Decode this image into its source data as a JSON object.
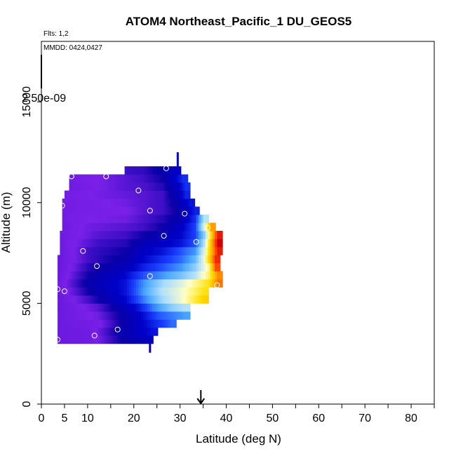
{
  "chart_data": {
    "type": "heatmap",
    "title": "ATOM4 Northeast_Pacific_1 DU_GEOS5",
    "subtitle_flights": "Flts: 1,2",
    "subtitle_dates": "MMDD: 0424,0427",
    "xlabel": "Latitude (deg N)",
    "ylabel": "Altitude (m)",
    "xlim": [
      0,
      85
    ],
    "ylim": [
      0,
      18000
    ],
    "x_ticks": [
      0,
      5,
      10,
      20,
      30,
      40,
      50,
      60,
      70,
      80
    ],
    "x_tick_labels": [
      "0",
      "5",
      "10",
      "20",
      "30",
      "40",
      "50",
      "60",
      "70",
      "80"
    ],
    "x_minor_ticks": [
      15,
      25,
      35,
      45,
      55,
      65,
      75,
      85
    ],
    "y_ticks": [
      0,
      5000,
      10000,
      15000
    ],
    "y_tick_labels": [
      "0",
      "5000",
      "10000",
      "15000"
    ],
    "colorbar_label": "2.50e-09",
    "arrow_marker_latitude": 34.5,
    "grid": false,
    "colormap": [
      "#5b12d6",
      "#7a20e8",
      "#0a00a8",
      "#0000c8",
      "#1a40ff",
      "#4aa8ff",
      "#a8dcff",
      "#ffffc8",
      "#ffe000",
      "#ffa000",
      "#ff4000",
      "#d00000"
    ],
    "bins": [
      {
        "alt_lo": 3000,
        "alt_hi": 3400,
        "cells": [
          [
            3.5,
            0.05
          ],
          [
            10,
            0.06
          ],
          [
            17,
            0.18
          ],
          [
            20,
            0.22
          ],
          [
            23,
            0.25
          ]
        ]
      },
      {
        "alt_lo": 3400,
        "alt_hi": 3800,
        "cells": [
          [
            3.5,
            0.05
          ],
          [
            10,
            0.06
          ],
          [
            17,
            0.2
          ],
          [
            20,
            0.24
          ],
          [
            24,
            0.3
          ]
        ]
      },
      {
        "alt_lo": 3800,
        "alt_hi": 4200,
        "cells": [
          [
            3.5,
            0.05
          ],
          [
            12,
            0.08
          ],
          [
            19,
            0.22
          ],
          [
            24,
            0.32
          ],
          [
            28,
            0.4
          ]
        ]
      },
      {
        "alt_lo": 4200,
        "alt_hi": 4600,
        "cells": [
          [
            3.5,
            0.05
          ],
          [
            12,
            0.1
          ],
          [
            20,
            0.24
          ],
          [
            25,
            0.38
          ],
          [
            31,
            0.45
          ]
        ]
      },
      {
        "alt_lo": 4600,
        "alt_hi": 5000,
        "cells": [
          [
            3.5,
            0.04
          ],
          [
            12,
            0.12
          ],
          [
            20,
            0.28
          ],
          [
            24,
            0.42
          ],
          [
            28,
            0.52
          ],
          [
            31,
            0.56
          ]
        ]
      },
      {
        "alt_lo": 5000,
        "alt_hi": 5400,
        "cells": [
          [
            3.5,
            0.04
          ],
          [
            10,
            0.14
          ],
          [
            18,
            0.28
          ],
          [
            22,
            0.42
          ],
          [
            26,
            0.54
          ],
          [
            30,
            0.62
          ],
          [
            33,
            0.7
          ],
          [
            35,
            0.75
          ]
        ]
      },
      {
        "alt_lo": 5400,
        "alt_hi": 5800,
        "cells": [
          [
            3.5,
            0.05
          ],
          [
            10,
            0.18
          ],
          [
            18,
            0.3
          ],
          [
            22,
            0.45
          ],
          [
            26,
            0.56
          ],
          [
            30,
            0.62
          ],
          [
            33,
            0.68
          ],
          [
            35,
            0.72
          ]
        ]
      },
      {
        "alt_lo": 5800,
        "alt_hi": 6200,
        "cells": [
          [
            3.5,
            0.06
          ],
          [
            10,
            0.2
          ],
          [
            18,
            0.3
          ],
          [
            22,
            0.44
          ],
          [
            26,
            0.54
          ],
          [
            30,
            0.6
          ],
          [
            33,
            0.66
          ],
          [
            36,
            0.72
          ],
          [
            38,
            0.86
          ]
        ]
      },
      {
        "alt_lo": 6200,
        "alt_hi": 6600,
        "cells": [
          [
            3.5,
            0.05
          ],
          [
            10,
            0.18
          ],
          [
            18,
            0.28
          ],
          [
            22,
            0.38
          ],
          [
            26,
            0.44
          ],
          [
            30,
            0.5
          ],
          [
            33,
            0.56
          ],
          [
            36,
            0.68
          ],
          [
            38,
            0.84
          ]
        ]
      },
      {
        "alt_lo": 6600,
        "alt_hi": 7000,
        "cells": [
          [
            3.5,
            0.04
          ],
          [
            10,
            0.16
          ],
          [
            18,
            0.24
          ],
          [
            22,
            0.32
          ],
          [
            26,
            0.38
          ],
          [
            30,
            0.44
          ],
          [
            33,
            0.52
          ],
          [
            36,
            0.66
          ],
          [
            37.5,
            0.9
          ]
        ]
      },
      {
        "alt_lo": 7000,
        "alt_hi": 7400,
        "cells": [
          [
            3.5,
            0.04
          ],
          [
            10,
            0.14
          ],
          [
            18,
            0.2
          ],
          [
            22,
            0.28
          ],
          [
            26,
            0.34
          ],
          [
            30,
            0.4
          ],
          [
            33,
            0.48
          ],
          [
            35,
            0.62
          ],
          [
            36.5,
            0.8
          ],
          [
            37.5,
            0.94
          ]
        ]
      },
      {
        "alt_lo": 7400,
        "alt_hi": 7800,
        "cells": [
          [
            4,
            0.05
          ],
          [
            10,
            0.14
          ],
          [
            18,
            0.18
          ],
          [
            22,
            0.26
          ],
          [
            26,
            0.3
          ],
          [
            30,
            0.38
          ],
          [
            33,
            0.44
          ],
          [
            35,
            0.6
          ],
          [
            36.5,
            0.78
          ],
          [
            38,
            0.96
          ]
        ]
      },
      {
        "alt_lo": 7800,
        "alt_hi": 8200,
        "cells": [
          [
            4,
            0.06
          ],
          [
            12,
            0.14
          ],
          [
            18,
            0.16
          ],
          [
            22,
            0.22
          ],
          [
            26,
            0.26
          ],
          [
            30,
            0.3
          ],
          [
            33,
            0.38
          ],
          [
            35,
            0.56
          ],
          [
            36.5,
            0.78
          ],
          [
            38,
            1.0
          ]
        ]
      },
      {
        "alt_lo": 8200,
        "alt_hi": 8600,
        "cells": [
          [
            4,
            0.06
          ],
          [
            12,
            0.12
          ],
          [
            18,
            0.14
          ],
          [
            22,
            0.18
          ],
          [
            26,
            0.22
          ],
          [
            30,
            0.28
          ],
          [
            33,
            0.36
          ],
          [
            35,
            0.52
          ],
          [
            36.5,
            0.74
          ],
          [
            38,
            0.96
          ]
        ]
      },
      {
        "alt_lo": 8600,
        "alt_hi": 9000,
        "cells": [
          [
            4.5,
            0.06
          ],
          [
            10,
            0.1
          ],
          [
            18,
            0.12
          ],
          [
            22,
            0.14
          ],
          [
            26,
            0.18
          ],
          [
            30,
            0.26
          ],
          [
            33,
            0.36
          ],
          [
            35,
            0.6
          ],
          [
            36.5,
            0.82
          ]
        ]
      },
      {
        "alt_lo": 9000,
        "alt_hi": 9400,
        "cells": [
          [
            4.5,
            0.07
          ],
          [
            10,
            0.09
          ],
          [
            18,
            0.1
          ],
          [
            22,
            0.13
          ],
          [
            26,
            0.16
          ],
          [
            30,
            0.22
          ],
          [
            33,
            0.34
          ],
          [
            35,
            0.56
          ]
        ]
      },
      {
        "alt_lo": 9400,
        "alt_hi": 9800,
        "cells": [
          [
            4.5,
            0.07
          ],
          [
            10,
            0.08
          ],
          [
            18,
            0.09
          ],
          [
            22,
            0.12
          ],
          [
            26,
            0.14
          ],
          [
            30,
            0.2
          ],
          [
            33,
            0.32
          ]
        ]
      },
      {
        "alt_lo": 9800,
        "alt_hi": 10200,
        "cells": [
          [
            4.5,
            0.07
          ],
          [
            10,
            0.08
          ],
          [
            18,
            0.1
          ],
          [
            22,
            0.12
          ],
          [
            26,
            0.14
          ],
          [
            29,
            0.2
          ],
          [
            32,
            0.3
          ]
        ]
      },
      {
        "alt_lo": 10200,
        "alt_hi": 10600,
        "cells": [
          [
            5,
            0.07
          ],
          [
            10,
            0.09
          ],
          [
            18,
            0.11
          ],
          [
            22,
            0.12
          ],
          [
            26,
            0.14
          ],
          [
            29,
            0.22
          ],
          [
            31,
            0.32
          ]
        ]
      },
      {
        "alt_lo": 10600,
        "alt_hi": 11000,
        "cells": [
          [
            6,
            0.06
          ],
          [
            12,
            0.09
          ],
          [
            18,
            0.12
          ],
          [
            22,
            0.13
          ],
          [
            26,
            0.16
          ],
          [
            29,
            0.24
          ],
          [
            31,
            0.34
          ]
        ]
      },
      {
        "alt_lo": 11000,
        "alt_hi": 11400,
        "cells": [
          [
            6,
            0.07
          ],
          [
            12,
            0.09
          ],
          [
            18,
            0.12
          ],
          [
            22,
            0.14
          ],
          [
            26,
            0.18
          ],
          [
            29,
            0.28
          ],
          [
            30.5,
            0.34
          ]
        ]
      },
      {
        "alt_lo": 11400,
        "alt_hi": 11800,
        "cells": [
          [
            18,
            0.14
          ],
          [
            22,
            0.15
          ],
          [
            26,
            0.2
          ],
          [
            29,
            0.26
          ]
        ]
      }
    ],
    "spikes": [
      {
        "lat": 29.5,
        "alt_lo": 11800,
        "alt_hi": 12500,
        "v": 0.28
      },
      {
        "lat": 23.5,
        "alt_lo": 2550,
        "alt_hi": 3000,
        "v": 0.22
      }
    ],
    "points": [
      {
        "lat": 6.5,
        "alt": 11300
      },
      {
        "lat": 14,
        "alt": 11300
      },
      {
        "lat": 27,
        "alt": 11700
      },
      {
        "lat": 21,
        "alt": 10600
      },
      {
        "lat": 4.5,
        "alt": 9850
      },
      {
        "lat": 23.5,
        "alt": 9600
      },
      {
        "lat": 31,
        "alt": 9450
      },
      {
        "lat": 36,
        "alt": 8750
      },
      {
        "lat": 26.5,
        "alt": 8350
      },
      {
        "lat": 33.5,
        "alt": 8050
      },
      {
        "lat": 9,
        "alt": 7600
      },
      {
        "lat": 12,
        "alt": 6850
      },
      {
        "lat": 23.5,
        "alt": 6350
      },
      {
        "lat": 3.5,
        "alt": 5700
      },
      {
        "lat": 5,
        "alt": 5600
      },
      {
        "lat": 38,
        "alt": 5900
      },
      {
        "lat": 16.5,
        "alt": 3700
      },
      {
        "lat": 11.5,
        "alt": 3400
      },
      {
        "lat": 3.5,
        "alt": 3200
      }
    ]
  }
}
